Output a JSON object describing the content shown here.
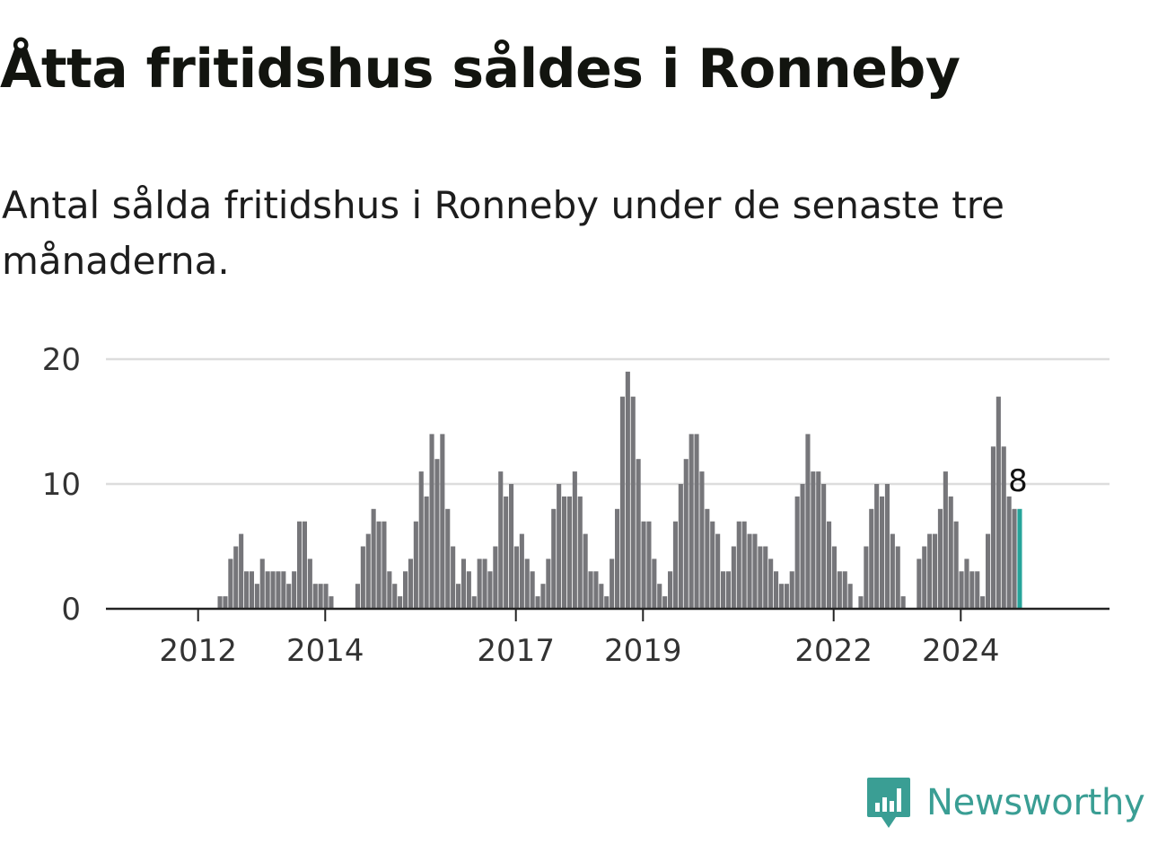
{
  "title": "Åtta fritidshus såldes i Ronneby",
  "subtitle": "Antal sålda fritidshus i Ronneby under de senaste tre månaderna.",
  "brand": {
    "name": "Newsworthy",
    "color": "#3a9e94",
    "icon": "bar-chart-speech-bubble-icon"
  },
  "colors": {
    "bar": "#76767a",
    "highlight": "#26a49a",
    "grid": "#dddddd",
    "axis": "#222222"
  },
  "chart_data": {
    "type": "bar",
    "title": "Åtta fritidshus såldes i Ronneby",
    "xlabel": "",
    "ylabel": "",
    "ylim": [
      0,
      20
    ],
    "yticks": [
      0,
      10,
      20
    ],
    "xticks": [
      {
        "label": "2012",
        "index": 8
      },
      {
        "label": "2014",
        "index": 32
      },
      {
        "label": "2017",
        "index": 68
      },
      {
        "label": "2019",
        "index": 92
      },
      {
        "label": "2022",
        "index": 128
      },
      {
        "label": "2024",
        "index": 152
      }
    ],
    "grid": true,
    "highlight_label": "8",
    "values": [
      0,
      0,
      0,
      0,
      0,
      0,
      0,
      0,
      0,
      0,
      1,
      1,
      4,
      5,
      6,
      3,
      3,
      2,
      4,
      3,
      3,
      3,
      3,
      2,
      3,
      7,
      7,
      4,
      2,
      2,
      2,
      1,
      0,
      0,
      0,
      0,
      2,
      5,
      6,
      8,
      7,
      7,
      3,
      2,
      1,
      3,
      4,
      7,
      11,
      9,
      14,
      12,
      14,
      8,
      5,
      2,
      4,
      3,
      1,
      4,
      4,
      3,
      5,
      11,
      9,
      10,
      5,
      6,
      4,
      3,
      1,
      2,
      4,
      8,
      10,
      9,
      9,
      11,
      9,
      6,
      3,
      3,
      2,
      1,
      4,
      8,
      17,
      19,
      17,
      12,
      7,
      7,
      4,
      2,
      1,
      3,
      7,
      10,
      12,
      14,
      14,
      11,
      8,
      7,
      6,
      3,
      3,
      5,
      7,
      7,
      6,
      6,
      5,
      5,
      4,
      3,
      2,
      2,
      3,
      9,
      10,
      14,
      11,
      11,
      10,
      7,
      5,
      3,
      3,
      2,
      0,
      1,
      5,
      8,
      10,
      9,
      10,
      6,
      5,
      1,
      0,
      0,
      4,
      5,
      6,
      6,
      8,
      11,
      9,
      7,
      3,
      4,
      3,
      3,
      1,
      6,
      13,
      17,
      13,
      9,
      8,
      8
    ]
  }
}
